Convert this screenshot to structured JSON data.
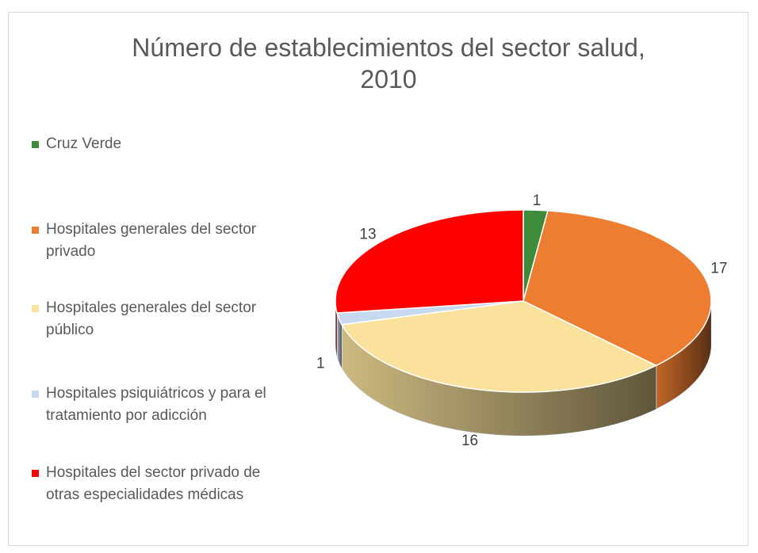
{
  "chart_data": {
    "type": "pie",
    "title": "Número de establecimientos del sector salud, 2010",
    "categories": [
      "Cruz Verde",
      "Hospitales generales del sector privado",
      "Hospitales generales del sector público",
      "Hospitales psiquiátricos y para el tratamiento por adicción",
      "Hospitales del sector privado de otras especialidades médicas"
    ],
    "values": [
      1,
      17,
      16,
      1,
      13
    ],
    "colors": [
      "#3f8b3c",
      "#ed7d31",
      "#fae29c",
      "#c6d9ef",
      "#ff0000"
    ],
    "legend": "left"
  }
}
